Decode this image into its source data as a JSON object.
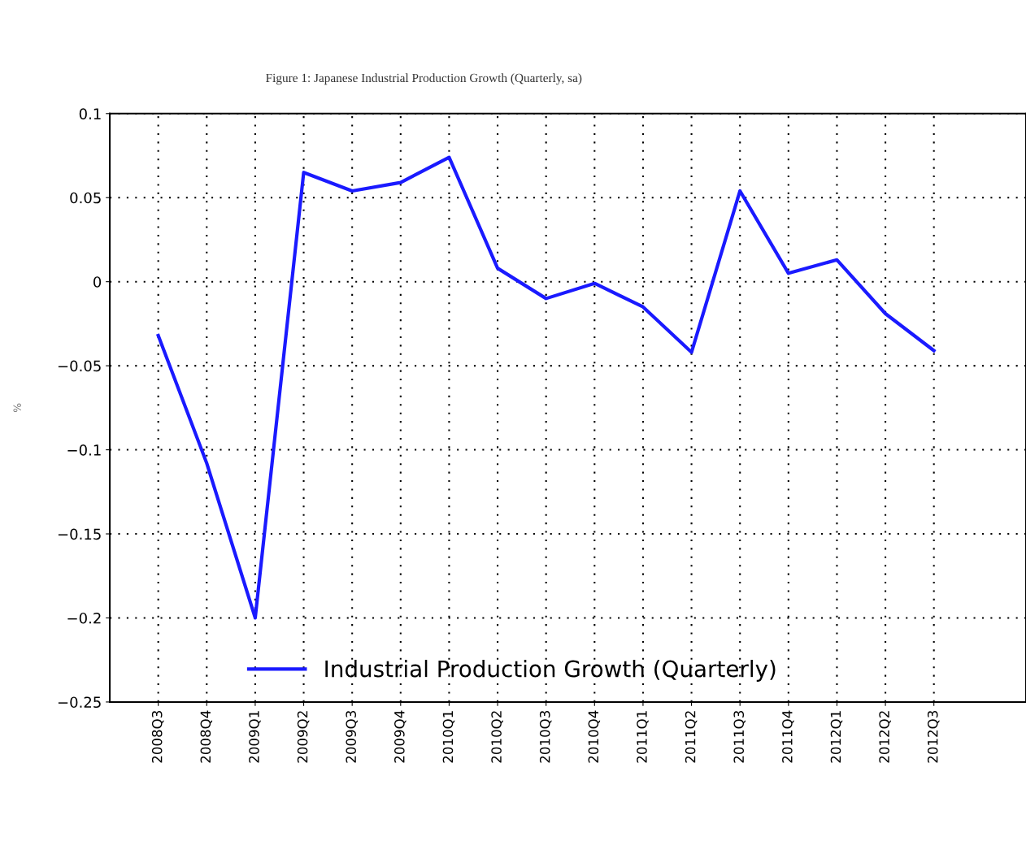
{
  "chart_data": {
    "type": "line",
    "title": "Figure 1: Japanese Industrial Production Growth (Quarterly, sa)",
    "ylabel": "%",
    "categories": [
      "2008Q3",
      "2008Q4",
      "2009Q1",
      "2009Q2",
      "2009Q3",
      "2009Q4",
      "2010Q1",
      "2010Q2",
      "2010Q3",
      "2010Q4",
      "2011Q1",
      "2011Q2",
      "2011Q3",
      "2011Q4",
      "2012Q1",
      "2012Q2",
      "2012Q3"
    ],
    "series": [
      {
        "name": "Industrial Production Growth (Quarterly)",
        "color": "#1a1aff",
        "values": [
          -0.032,
          -0.108,
          -0.2,
          0.065,
          0.054,
          0.059,
          0.074,
          0.008,
          -0.01,
          -0.001,
          -0.015,
          -0.042,
          0.054,
          0.005,
          0.013,
          -0.019,
          -0.041
        ]
      }
    ],
    "ylim": [
      -0.25,
      0.1
    ],
    "yticks": [
      {
        "value": -0.25,
        "label": "−0.25"
      },
      {
        "value": -0.2,
        "label": "−0.2"
      },
      {
        "value": -0.15,
        "label": "−0.15"
      },
      {
        "value": -0.1,
        "label": "−0.1"
      },
      {
        "value": -0.05,
        "label": "−0.05"
      },
      0,
      0.05,
      0.1
    ],
    "grid": true,
    "line_style": "solid",
    "legend": "bottom"
  }
}
